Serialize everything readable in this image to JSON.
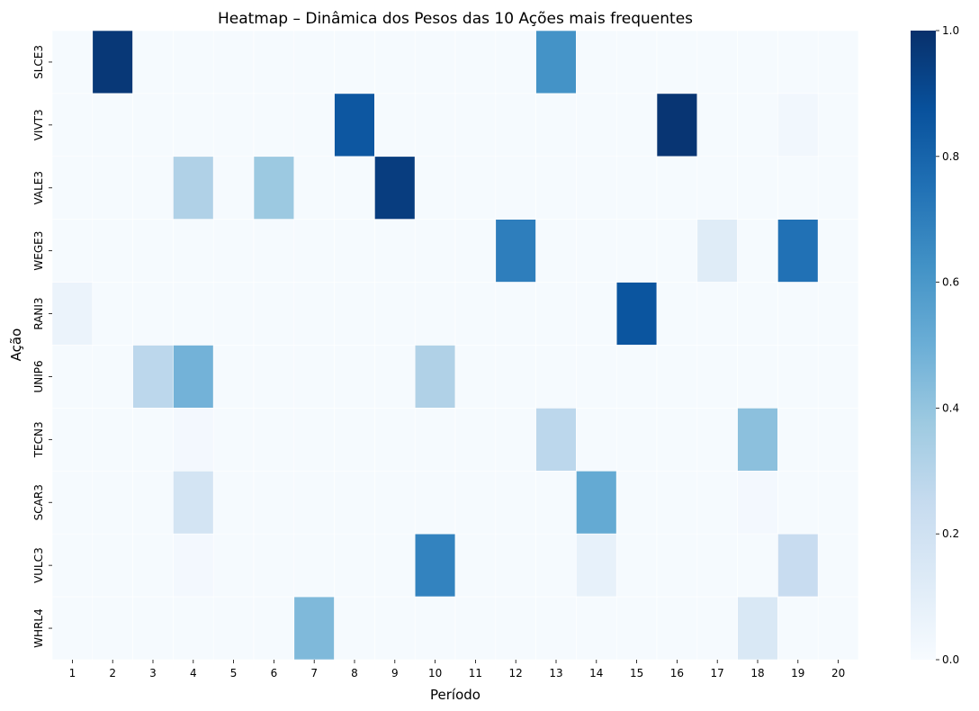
{
  "chart_data": {
    "type": "heatmap",
    "title": "Heatmap – Dinâmica dos Pesos das 10 Ações mais frequentes",
    "xlabel": "Período",
    "ylabel": "Ação",
    "x": [
      1,
      2,
      3,
      4,
      5,
      6,
      7,
      8,
      9,
      10,
      11,
      12,
      13,
      14,
      15,
      16,
      17,
      18,
      19,
      20
    ],
    "y": [
      "SLCE3",
      "VIVT3",
      "VALE3",
      "WEGE3",
      "RANI3",
      "UNIP6",
      "TECN3",
      "SCAR3",
      "VULC3",
      "WHRL4"
    ],
    "colormap": "Blues",
    "colorbar": {
      "range": [
        0,
        1
      ],
      "ticks": [
        "0.0",
        "0.2",
        "0.4",
        "0.6",
        "0.8",
        "1.0"
      ]
    },
    "values": [
      [
        0.01,
        0.97,
        0.01,
        0.01,
        0.01,
        0.01,
        0.01,
        0.01,
        0.01,
        0.01,
        0.01,
        0.01,
        0.62,
        0.01,
        0.01,
        0.01,
        0.01,
        0.01,
        0.01,
        0.01
      ],
      [
        0.01,
        0.01,
        0.01,
        0.01,
        0.01,
        0.01,
        0.01,
        0.85,
        0.01,
        0.01,
        0.01,
        0.01,
        0.01,
        0.01,
        0.01,
        0.98,
        0.01,
        0.01,
        0.03,
        0.01
      ],
      [
        0.01,
        0.01,
        0.01,
        0.32,
        0.01,
        0.38,
        0.01,
        0.01,
        0.95,
        0.01,
        0.01,
        0.01,
        0.01,
        0.01,
        0.01,
        0.01,
        0.01,
        0.01,
        0.01,
        0.01
      ],
      [
        0.01,
        0.01,
        0.01,
        0.01,
        0.01,
        0.01,
        0.01,
        0.01,
        0.01,
        0.01,
        0.01,
        0.7,
        0.01,
        0.01,
        0.01,
        0.01,
        0.12,
        0.01,
        0.75,
        0.01
      ],
      [
        0.06,
        0.01,
        0.01,
        0.01,
        0.01,
        0.01,
        0.01,
        0.01,
        0.01,
        0.01,
        0.01,
        0.01,
        0.01,
        0.01,
        0.86,
        0.01,
        0.01,
        0.01,
        0.01,
        0.01
      ],
      [
        0.01,
        0.01,
        0.28,
        0.48,
        0.01,
        0.01,
        0.01,
        0.01,
        0.01,
        0.32,
        0.01,
        0.01,
        0.01,
        0.01,
        0.01,
        0.01,
        0.01,
        0.01,
        0.01,
        0.01
      ],
      [
        0.01,
        0.01,
        0.01,
        0.02,
        0.01,
        0.01,
        0.01,
        0.01,
        0.01,
        0.01,
        0.01,
        0.01,
        0.28,
        0.01,
        0.01,
        0.01,
        0.01,
        0.42,
        0.01,
        0.01
      ],
      [
        0.01,
        0.01,
        0.01,
        0.18,
        0.01,
        0.01,
        0.01,
        0.01,
        0.01,
        0.01,
        0.01,
        0.01,
        0.01,
        0.52,
        0.01,
        0.01,
        0.01,
        0.02,
        0.01,
        0.01
      ],
      [
        0.01,
        0.01,
        0.01,
        0.02,
        0.01,
        0.01,
        0.01,
        0.01,
        0.01,
        0.68,
        0.01,
        0.01,
        0.01,
        0.08,
        0.01,
        0.01,
        0.01,
        0.01,
        0.24,
        0.01
      ],
      [
        0.01,
        0.01,
        0.01,
        0.01,
        0.01,
        0.01,
        0.45,
        0.01,
        0.01,
        0.01,
        0.01,
        0.01,
        0.01,
        0.01,
        0.01,
        0.01,
        0.01,
        0.15,
        0.01,
        0.01
      ]
    ]
  }
}
